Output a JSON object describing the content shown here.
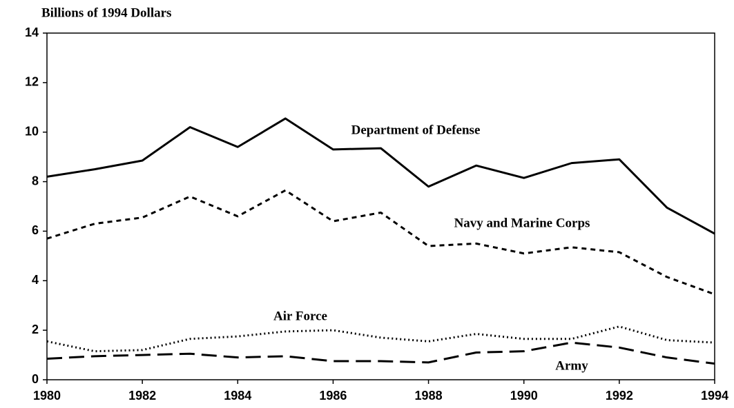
{
  "chart_data": {
    "type": "line",
    "y_axis_label": "Billions of 1994 Dollars",
    "x": [
      1980,
      1981,
      1982,
      1983,
      1984,
      1985,
      1986,
      1987,
      1988,
      1989,
      1990,
      1991,
      1992,
      1993,
      1994
    ],
    "series": [
      {
        "name": "Department of Defense",
        "color": "#000000",
        "style": "solid",
        "values": [
          8.2,
          8.5,
          8.85,
          10.2,
          9.4,
          10.55,
          9.3,
          9.35,
          7.8,
          8.65,
          8.15,
          8.75,
          8.9,
          6.95,
          5.9
        ]
      },
      {
        "name": "Navy and Marine Corps",
        "color": "#000000",
        "style": "dashed",
        "values": [
          5.7,
          6.3,
          6.55,
          7.4,
          6.6,
          7.65,
          6.4,
          6.75,
          5.4,
          5.5,
          5.1,
          5.35,
          5.15,
          4.15,
          3.45
        ]
      },
      {
        "name": "Air Force",
        "color": "#000000",
        "style": "dotted",
        "values": [
          1.55,
          1.15,
          1.2,
          1.65,
          1.75,
          1.95,
          2.0,
          1.7,
          1.55,
          1.85,
          1.65,
          1.65,
          2.15,
          1.6,
          1.5
        ]
      },
      {
        "name": "Army",
        "color": "#000000",
        "style": "longdash",
        "values": [
          0.85,
          0.95,
          1.0,
          1.05,
          0.9,
          0.95,
          0.75,
          0.75,
          0.7,
          1.1,
          1.15,
          1.5,
          1.3,
          0.9,
          0.65
        ]
      }
    ],
    "xlim": [
      1980,
      1994
    ],
    "xticks": [
      1980,
      1982,
      1984,
      1986,
      1988,
      1990,
      1992,
      1994
    ],
    "ylim": [
      0,
      14
    ],
    "yticks": [
      0,
      2,
      4,
      6,
      8,
      10,
      12,
      14
    ],
    "grid": false
  }
}
